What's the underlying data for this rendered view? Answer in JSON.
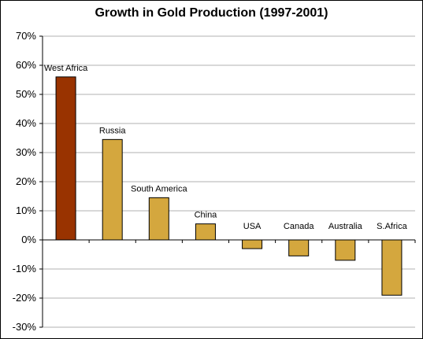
{
  "chart_data": {
    "type": "bar",
    "title": "Growth in Gold Production (1997-2001)",
    "xlabel": "",
    "ylabel": "",
    "ylim": [
      -30,
      70
    ],
    "yticks": [
      70,
      60,
      50,
      40,
      30,
      20,
      10,
      0,
      -10,
      -20,
      -30
    ],
    "ytick_labels": [
      "70%",
      "60%",
      "50%",
      "40%",
      "30%",
      "20%",
      "10%",
      "0%",
      "-10%",
      "-20%",
      "-30%"
    ],
    "grid": true,
    "legend": "none",
    "categories": [
      "West Africa",
      "Russia",
      "South America",
      "China",
      "USA",
      "Canada",
      "Australia",
      "S.Africa"
    ],
    "values": [
      56,
      34.5,
      14.5,
      5.5,
      -3,
      -5.5,
      -7,
      -19
    ],
    "colors": [
      "#993300",
      "#D4A73E",
      "#D4A73E",
      "#D4A73E",
      "#D4A73E",
      "#D4A73E",
      "#D4A73E",
      "#D4A73E"
    ],
    "highlight_color": "#993300",
    "bar_color": "#D4A73E"
  }
}
